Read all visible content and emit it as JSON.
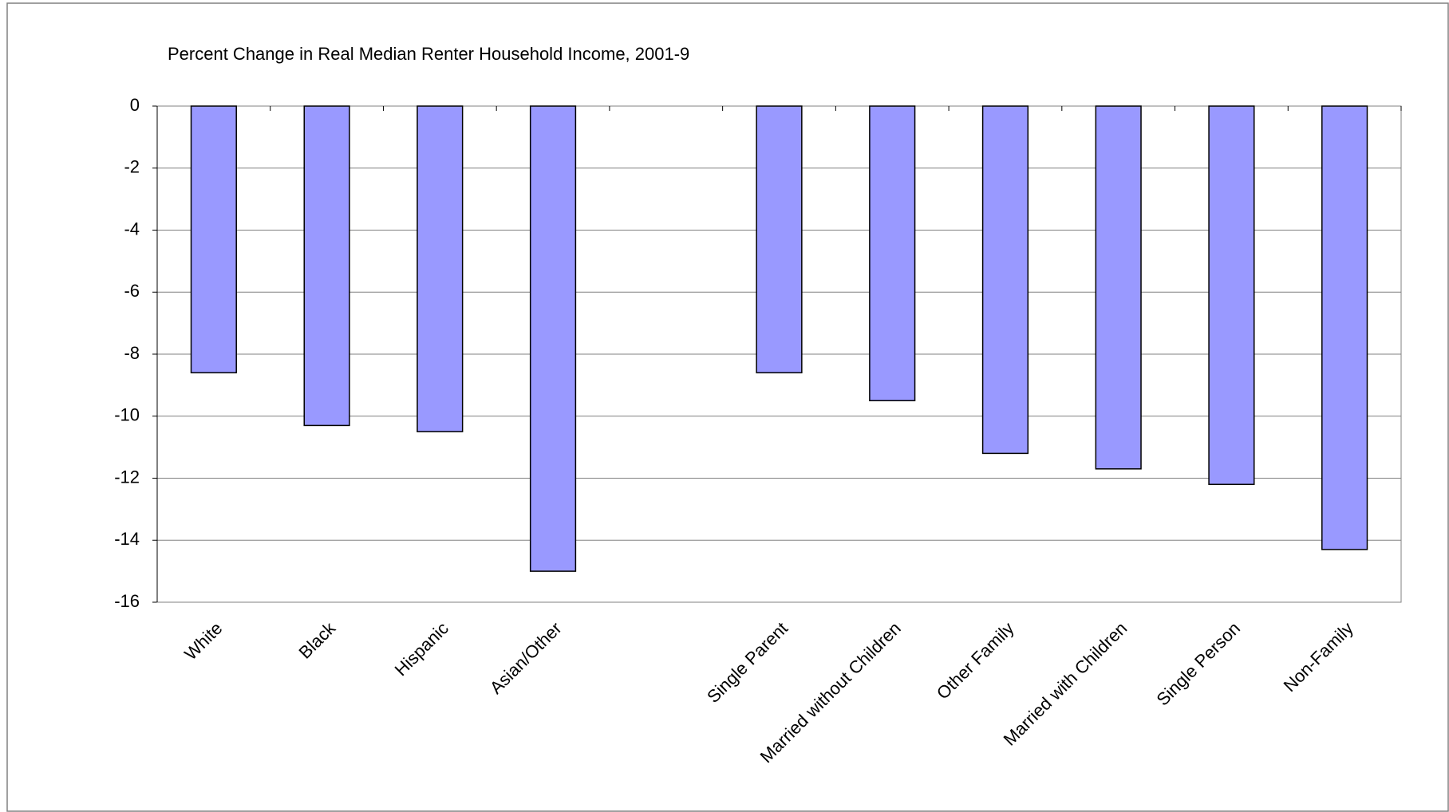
{
  "chart_data": {
    "type": "bar",
    "title": "Percent Change in Real Median Renter Household Income, 2001-9",
    "categories": [
      "White",
      "Black",
      "Hispanic",
      "Asian/Other",
      null,
      "Single Parent",
      "Married without Children",
      "Other Family",
      "Married with Children",
      "Single Person",
      "Non-Family"
    ],
    "values": [
      -8.6,
      -10.3,
      -10.5,
      -15.0,
      null,
      -8.6,
      -9.5,
      -11.2,
      -11.7,
      -12.2,
      -14.3
    ],
    "color": "#9999ff",
    "ylim": [
      -16,
      0
    ],
    "yticks": [
      0,
      -2,
      -4,
      -6,
      -8,
      -10,
      -12,
      -14,
      -16
    ],
    "grid": true
  }
}
